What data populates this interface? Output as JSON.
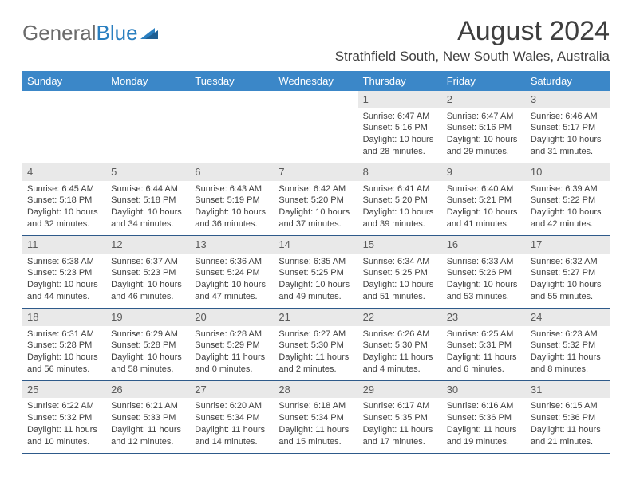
{
  "logo": {
    "text1": "General",
    "text2": "Blue"
  },
  "title": "August 2024",
  "location": "Strathfield South, New South Wales, Australia",
  "day_headers": [
    "Sunday",
    "Monday",
    "Tuesday",
    "Wednesday",
    "Thursday",
    "Friday",
    "Saturday"
  ],
  "colors": {
    "header_bg": "#3b87c8",
    "header_text": "#ffffff",
    "daynum_bg": "#e9e9e9",
    "border": "#2e5a8a",
    "logo_gray": "#6b6b6b",
    "logo_blue": "#2a7fc0"
  },
  "weeks": [
    [
      null,
      null,
      null,
      null,
      {
        "n": "1",
        "sr": "6:47 AM",
        "ss": "5:16 PM",
        "dl": "10 hours and 28 minutes."
      },
      {
        "n": "2",
        "sr": "6:47 AM",
        "ss": "5:16 PM",
        "dl": "10 hours and 29 minutes."
      },
      {
        "n": "3",
        "sr": "6:46 AM",
        "ss": "5:17 PM",
        "dl": "10 hours and 31 minutes."
      }
    ],
    [
      {
        "n": "4",
        "sr": "6:45 AM",
        "ss": "5:18 PM",
        "dl": "10 hours and 32 minutes."
      },
      {
        "n": "5",
        "sr": "6:44 AM",
        "ss": "5:18 PM",
        "dl": "10 hours and 34 minutes."
      },
      {
        "n": "6",
        "sr": "6:43 AM",
        "ss": "5:19 PM",
        "dl": "10 hours and 36 minutes."
      },
      {
        "n": "7",
        "sr": "6:42 AM",
        "ss": "5:20 PM",
        "dl": "10 hours and 37 minutes."
      },
      {
        "n": "8",
        "sr": "6:41 AM",
        "ss": "5:20 PM",
        "dl": "10 hours and 39 minutes."
      },
      {
        "n": "9",
        "sr": "6:40 AM",
        "ss": "5:21 PM",
        "dl": "10 hours and 41 minutes."
      },
      {
        "n": "10",
        "sr": "6:39 AM",
        "ss": "5:22 PM",
        "dl": "10 hours and 42 minutes."
      }
    ],
    [
      {
        "n": "11",
        "sr": "6:38 AM",
        "ss": "5:23 PM",
        "dl": "10 hours and 44 minutes."
      },
      {
        "n": "12",
        "sr": "6:37 AM",
        "ss": "5:23 PM",
        "dl": "10 hours and 46 minutes."
      },
      {
        "n": "13",
        "sr": "6:36 AM",
        "ss": "5:24 PM",
        "dl": "10 hours and 47 minutes."
      },
      {
        "n": "14",
        "sr": "6:35 AM",
        "ss": "5:25 PM",
        "dl": "10 hours and 49 minutes."
      },
      {
        "n": "15",
        "sr": "6:34 AM",
        "ss": "5:25 PM",
        "dl": "10 hours and 51 minutes."
      },
      {
        "n": "16",
        "sr": "6:33 AM",
        "ss": "5:26 PM",
        "dl": "10 hours and 53 minutes."
      },
      {
        "n": "17",
        "sr": "6:32 AM",
        "ss": "5:27 PM",
        "dl": "10 hours and 55 minutes."
      }
    ],
    [
      {
        "n": "18",
        "sr": "6:31 AM",
        "ss": "5:28 PM",
        "dl": "10 hours and 56 minutes."
      },
      {
        "n": "19",
        "sr": "6:29 AM",
        "ss": "5:28 PM",
        "dl": "10 hours and 58 minutes."
      },
      {
        "n": "20",
        "sr": "6:28 AM",
        "ss": "5:29 PM",
        "dl": "11 hours and 0 minutes."
      },
      {
        "n": "21",
        "sr": "6:27 AM",
        "ss": "5:30 PM",
        "dl": "11 hours and 2 minutes."
      },
      {
        "n": "22",
        "sr": "6:26 AM",
        "ss": "5:30 PM",
        "dl": "11 hours and 4 minutes."
      },
      {
        "n": "23",
        "sr": "6:25 AM",
        "ss": "5:31 PM",
        "dl": "11 hours and 6 minutes."
      },
      {
        "n": "24",
        "sr": "6:23 AM",
        "ss": "5:32 PM",
        "dl": "11 hours and 8 minutes."
      }
    ],
    [
      {
        "n": "25",
        "sr": "6:22 AM",
        "ss": "5:32 PM",
        "dl": "11 hours and 10 minutes."
      },
      {
        "n": "26",
        "sr": "6:21 AM",
        "ss": "5:33 PM",
        "dl": "11 hours and 12 minutes."
      },
      {
        "n": "27",
        "sr": "6:20 AM",
        "ss": "5:34 PM",
        "dl": "11 hours and 14 minutes."
      },
      {
        "n": "28",
        "sr": "6:18 AM",
        "ss": "5:34 PM",
        "dl": "11 hours and 15 minutes."
      },
      {
        "n": "29",
        "sr": "6:17 AM",
        "ss": "5:35 PM",
        "dl": "11 hours and 17 minutes."
      },
      {
        "n": "30",
        "sr": "6:16 AM",
        "ss": "5:36 PM",
        "dl": "11 hours and 19 minutes."
      },
      {
        "n": "31",
        "sr": "6:15 AM",
        "ss": "5:36 PM",
        "dl": "11 hours and 21 minutes."
      }
    ]
  ],
  "labels": {
    "sunrise": "Sunrise:",
    "sunset": "Sunset:",
    "daylight": "Daylight:"
  }
}
